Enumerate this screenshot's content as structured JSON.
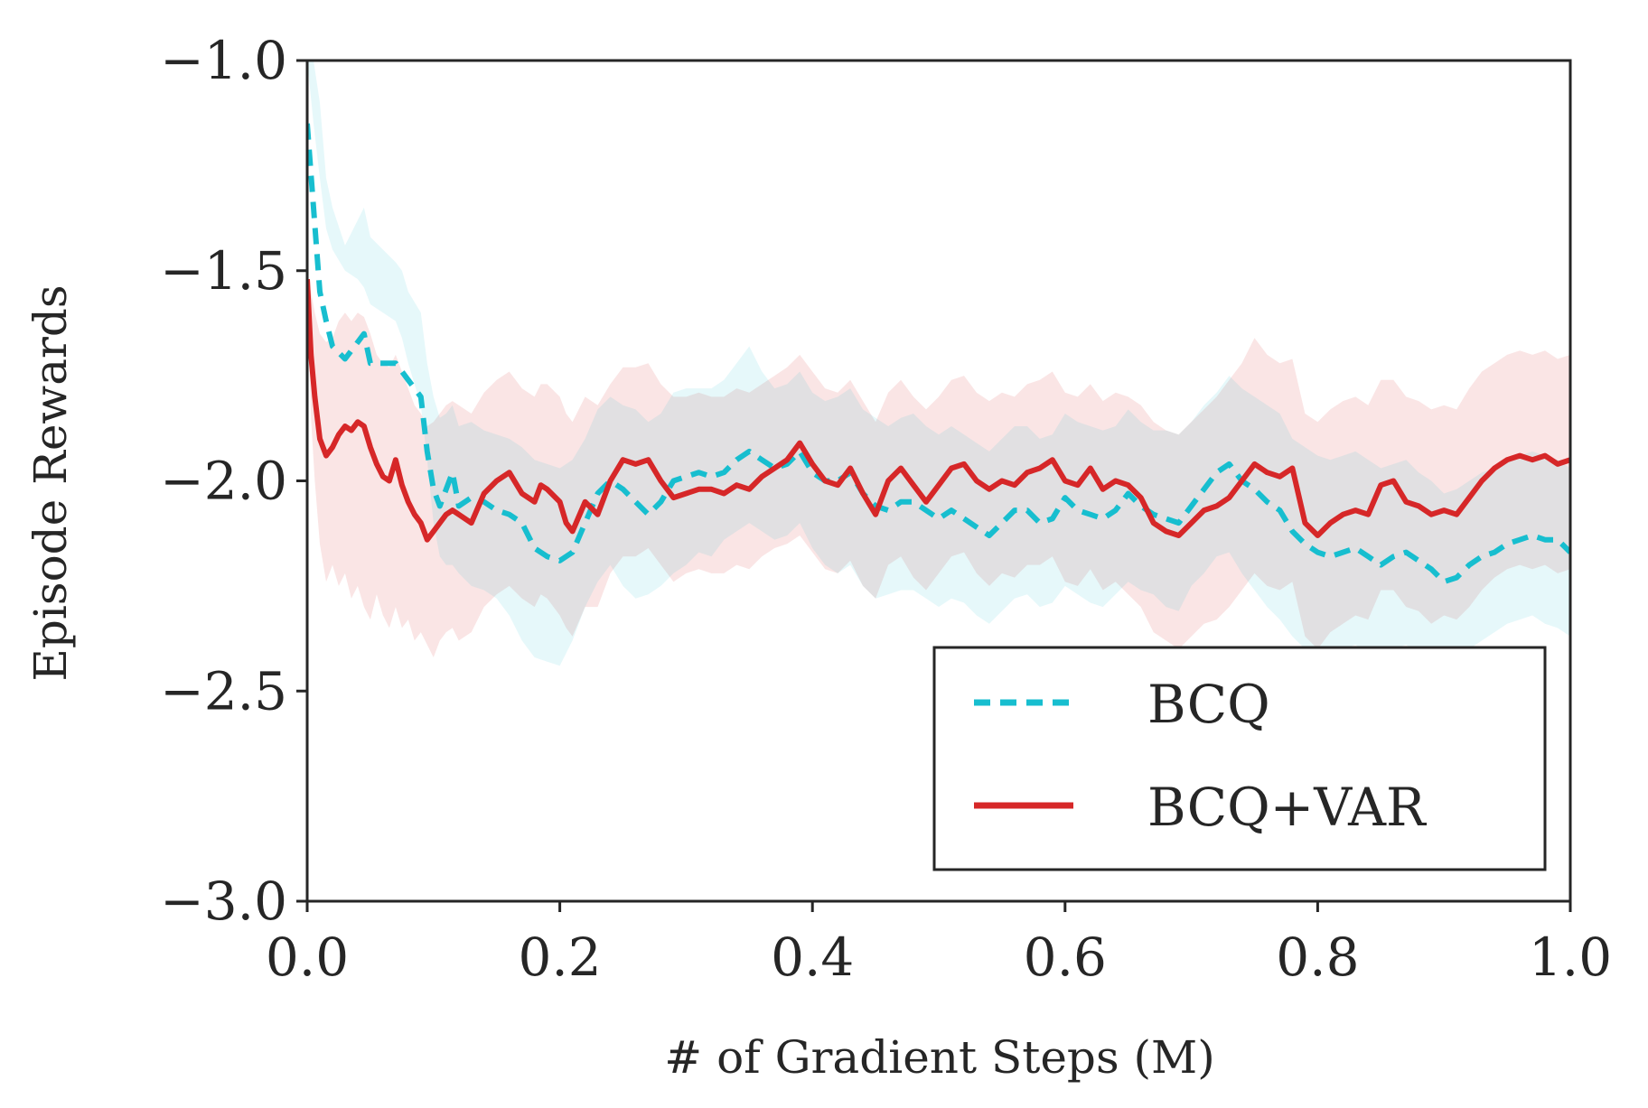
{
  "chart_data": {
    "type": "line",
    "title": "",
    "xlabel": "# of Gradient Steps (M)",
    "ylabel": "Episode Rewards",
    "xlim": [
      0.0,
      1.0
    ],
    "ylim": [
      -3.0,
      -1.0
    ],
    "xticks": [
      0.0,
      0.2,
      0.4,
      0.6,
      0.8,
      1.0
    ],
    "xtick_labels": [
      "0.0",
      "0.2",
      "0.4",
      "0.6",
      "0.8",
      "1.0"
    ],
    "yticks": [
      -3.0,
      -2.5,
      -2.0,
      -1.5,
      -1.0
    ],
    "ytick_labels": [
      "−3.0",
      "−2.5",
      "−2.0",
      "−1.5",
      "−1.0"
    ],
    "grid": false,
    "legend_position": "lower-right",
    "series": [
      {
        "name": "BCQ",
        "style": "dashed",
        "color": "#17becf",
        "band_color": "#17becf",
        "x": [
          0.0,
          0.005,
          0.01,
          0.015,
          0.02,
          0.03,
          0.04,
          0.045,
          0.05,
          0.06,
          0.07,
          0.075,
          0.08,
          0.09,
          0.095,
          0.1,
          0.105,
          0.11,
          0.115,
          0.12,
          0.13,
          0.14,
          0.15,
          0.16,
          0.17,
          0.18,
          0.19,
          0.2,
          0.21,
          0.22,
          0.23,
          0.24,
          0.25,
          0.26,
          0.27,
          0.28,
          0.29,
          0.3,
          0.31,
          0.32,
          0.33,
          0.34,
          0.35,
          0.36,
          0.37,
          0.38,
          0.39,
          0.4,
          0.41,
          0.42,
          0.43,
          0.44,
          0.45,
          0.46,
          0.47,
          0.48,
          0.49,
          0.5,
          0.51,
          0.52,
          0.53,
          0.54,
          0.55,
          0.56,
          0.57,
          0.58,
          0.59,
          0.6,
          0.61,
          0.62,
          0.63,
          0.64,
          0.65,
          0.66,
          0.67,
          0.68,
          0.69,
          0.7,
          0.71,
          0.72,
          0.73,
          0.74,
          0.75,
          0.76,
          0.77,
          0.78,
          0.79,
          0.8,
          0.81,
          0.82,
          0.83,
          0.84,
          0.85,
          0.86,
          0.87,
          0.88,
          0.89,
          0.9,
          0.91,
          0.92,
          0.93,
          0.94,
          0.95,
          0.96,
          0.97,
          0.98,
          0.99,
          1.0
        ],
        "y": [
          -1.15,
          -1.35,
          -1.55,
          -1.62,
          -1.68,
          -1.71,
          -1.67,
          -1.65,
          -1.72,
          -1.72,
          -1.72,
          -1.74,
          -1.76,
          -1.8,
          -1.93,
          -2.02,
          -2.06,
          -2.02,
          -1.98,
          -2.06,
          -2.04,
          -2.05,
          -2.07,
          -2.08,
          -2.1,
          -2.16,
          -2.18,
          -2.19,
          -2.17,
          -2.1,
          -2.03,
          -2.0,
          -2.02,
          -2.05,
          -2.08,
          -2.05,
          -2.0,
          -1.99,
          -1.98,
          -1.99,
          -1.98,
          -1.95,
          -1.93,
          -1.95,
          -1.97,
          -1.96,
          -1.93,
          -1.98,
          -2.0,
          -2.0,
          -1.98,
          -2.03,
          -2.06,
          -2.07,
          -2.05,
          -2.05,
          -2.07,
          -2.09,
          -2.07,
          -2.09,
          -2.11,
          -2.13,
          -2.1,
          -2.07,
          -2.07,
          -2.1,
          -2.09,
          -2.04,
          -2.07,
          -2.08,
          -2.09,
          -2.07,
          -2.03,
          -2.06,
          -2.08,
          -2.09,
          -2.1,
          -2.06,
          -2.02,
          -1.98,
          -1.96,
          -2.0,
          -2.02,
          -2.05,
          -2.07,
          -2.12,
          -2.15,
          -2.17,
          -2.18,
          -2.17,
          -2.16,
          -2.18,
          -2.2,
          -2.18,
          -2.17,
          -2.19,
          -2.21,
          -2.24,
          -2.23,
          -2.2,
          -2.18,
          -2.17,
          -2.15,
          -2.14,
          -2.13,
          -2.14,
          -2.14,
          -2.17
        ],
        "lower": [
          -1.0,
          -1.15,
          -1.28,
          -1.4,
          -1.45,
          -1.5,
          -1.52,
          -1.54,
          -1.58,
          -1.6,
          -1.62,
          -1.66,
          -1.72,
          -1.82,
          -1.95,
          -2.1,
          -2.18,
          -2.2,
          -2.2,
          -2.22,
          -2.25,
          -2.26,
          -2.28,
          -2.32,
          -2.38,
          -2.42,
          -2.43,
          -2.44,
          -2.38,
          -2.3,
          -2.24,
          -2.2,
          -2.25,
          -2.28,
          -2.27,
          -2.25,
          -2.22,
          -2.2,
          -2.17,
          -2.18,
          -2.14,
          -2.12,
          -2.1,
          -2.12,
          -2.14,
          -2.13,
          -2.1,
          -2.16,
          -2.2,
          -2.22,
          -2.2,
          -2.25,
          -2.28,
          -2.27,
          -2.26,
          -2.26,
          -2.28,
          -2.3,
          -2.28,
          -2.29,
          -2.32,
          -2.34,
          -2.31,
          -2.28,
          -2.27,
          -2.3,
          -2.29,
          -2.25,
          -2.27,
          -2.29,
          -2.3,
          -2.27,
          -2.24,
          -2.26,
          -2.27,
          -2.3,
          -2.31,
          -2.25,
          -2.22,
          -2.18,
          -2.17,
          -2.22,
          -2.26,
          -2.3,
          -2.33,
          -2.37,
          -2.4,
          -2.41,
          -2.41,
          -2.4,
          -2.39,
          -2.41,
          -2.42,
          -2.4,
          -2.39,
          -2.41,
          -2.44,
          -2.46,
          -2.44,
          -2.4,
          -2.38,
          -2.36,
          -2.34,
          -2.33,
          -2.32,
          -2.34,
          -2.35,
          -2.37
        ],
        "upper": [
          -1.0,
          -1.0,
          -1.1,
          -1.28,
          -1.35,
          -1.44,
          -1.38,
          -1.35,
          -1.42,
          -1.45,
          -1.48,
          -1.5,
          -1.55,
          -1.6,
          -1.72,
          -1.8,
          -1.85,
          -1.84,
          -1.82,
          -1.87,
          -1.86,
          -1.88,
          -1.89,
          -1.9,
          -1.92,
          -1.95,
          -1.96,
          -1.97,
          -1.95,
          -1.9,
          -1.83,
          -1.8,
          -1.82,
          -1.83,
          -1.86,
          -1.84,
          -1.79,
          -1.78,
          -1.78,
          -1.78,
          -1.76,
          -1.72,
          -1.68,
          -1.74,
          -1.78,
          -1.77,
          -1.74,
          -1.79,
          -1.81,
          -1.8,
          -1.78,
          -1.83,
          -1.85,
          -1.87,
          -1.85,
          -1.84,
          -1.87,
          -1.89,
          -1.87,
          -1.89,
          -1.91,
          -1.93,
          -1.9,
          -1.87,
          -1.87,
          -1.9,
          -1.89,
          -1.84,
          -1.86,
          -1.87,
          -1.88,
          -1.87,
          -1.83,
          -1.86,
          -1.88,
          -1.88,
          -1.89,
          -1.86,
          -1.82,
          -1.79,
          -1.75,
          -1.78,
          -1.8,
          -1.82,
          -1.84,
          -1.9,
          -1.92,
          -1.94,
          -1.95,
          -1.94,
          -1.93,
          -1.95,
          -1.97,
          -1.96,
          -1.95,
          -1.98,
          -2.0,
          -2.03,
          -2.02,
          -2.0,
          -1.98,
          -1.97,
          -1.95,
          -1.94,
          -1.93,
          -1.94,
          -1.95,
          -1.97
        ]
      },
      {
        "name": "BCQ+VAR",
        "style": "solid",
        "color": "#d62728",
        "band_color": "#d62728",
        "x": [
          0.0,
          0.003,
          0.006,
          0.01,
          0.015,
          0.02,
          0.025,
          0.03,
          0.035,
          0.04,
          0.045,
          0.05,
          0.055,
          0.06,
          0.065,
          0.07,
          0.075,
          0.08,
          0.085,
          0.09,
          0.095,
          0.1,
          0.105,
          0.11,
          0.115,
          0.12,
          0.13,
          0.14,
          0.15,
          0.16,
          0.17,
          0.18,
          0.185,
          0.19,
          0.2,
          0.205,
          0.21,
          0.22,
          0.23,
          0.24,
          0.25,
          0.26,
          0.27,
          0.28,
          0.29,
          0.3,
          0.31,
          0.32,
          0.33,
          0.34,
          0.35,
          0.36,
          0.37,
          0.38,
          0.39,
          0.4,
          0.41,
          0.42,
          0.43,
          0.44,
          0.45,
          0.46,
          0.47,
          0.48,
          0.49,
          0.5,
          0.51,
          0.52,
          0.53,
          0.54,
          0.55,
          0.56,
          0.57,
          0.58,
          0.59,
          0.6,
          0.61,
          0.62,
          0.63,
          0.64,
          0.65,
          0.66,
          0.67,
          0.68,
          0.69,
          0.7,
          0.71,
          0.72,
          0.73,
          0.74,
          0.75,
          0.76,
          0.77,
          0.78,
          0.79,
          0.8,
          0.81,
          0.82,
          0.83,
          0.84,
          0.85,
          0.86,
          0.87,
          0.88,
          0.89,
          0.9,
          0.91,
          0.92,
          0.93,
          0.94,
          0.95,
          0.96,
          0.97,
          0.98,
          0.99,
          1.0
        ],
        "y": [
          -1.52,
          -1.7,
          -1.8,
          -1.9,
          -1.94,
          -1.92,
          -1.89,
          -1.87,
          -1.88,
          -1.86,
          -1.87,
          -1.92,
          -1.96,
          -1.99,
          -2.0,
          -1.95,
          -2.01,
          -2.05,
          -2.08,
          -2.1,
          -2.14,
          -2.12,
          -2.1,
          -2.08,
          -2.07,
          -2.08,
          -2.1,
          -2.03,
          -2.0,
          -1.98,
          -2.03,
          -2.05,
          -2.01,
          -2.02,
          -2.05,
          -2.1,
          -2.12,
          -2.05,
          -2.08,
          -2.0,
          -1.95,
          -1.96,
          -1.95,
          -2.0,
          -2.04,
          -2.03,
          -2.02,
          -2.02,
          -2.03,
          -2.01,
          -2.02,
          -1.99,
          -1.97,
          -1.95,
          -1.91,
          -1.96,
          -2.0,
          -2.01,
          -1.97,
          -2.03,
          -2.08,
          -2.0,
          -1.97,
          -2.01,
          -2.05,
          -2.01,
          -1.97,
          -1.96,
          -2.0,
          -2.02,
          -2.0,
          -2.01,
          -1.98,
          -1.97,
          -1.95,
          -2.0,
          -2.01,
          -1.97,
          -2.02,
          -2.0,
          -2.01,
          -2.04,
          -2.1,
          -2.12,
          -2.13,
          -2.1,
          -2.07,
          -2.06,
          -2.04,
          -2.0,
          -1.96,
          -1.98,
          -1.99,
          -1.97,
          -2.1,
          -2.13,
          -2.1,
          -2.08,
          -2.07,
          -2.08,
          -2.01,
          -2.0,
          -2.05,
          -2.06,
          -2.08,
          -2.07,
          -2.08,
          -2.04,
          -2.0,
          -1.97,
          -1.95,
          -1.94,
          -1.95,
          -1.94,
          -1.96,
          -1.95
        ],
        "lower": [
          -1.52,
          -1.85,
          -2.0,
          -2.15,
          -2.24,
          -2.2,
          -2.25,
          -2.22,
          -2.28,
          -2.25,
          -2.3,
          -2.33,
          -2.27,
          -2.32,
          -2.35,
          -2.3,
          -2.35,
          -2.33,
          -2.38,
          -2.36,
          -2.39,
          -2.42,
          -2.38,
          -2.36,
          -2.35,
          -2.38,
          -2.36,
          -2.3,
          -2.27,
          -2.25,
          -2.28,
          -2.3,
          -2.27,
          -2.28,
          -2.32,
          -2.35,
          -2.37,
          -2.3,
          -2.3,
          -2.22,
          -2.18,
          -2.18,
          -2.16,
          -2.2,
          -2.24,
          -2.22,
          -2.21,
          -2.22,
          -2.22,
          -2.2,
          -2.21,
          -2.18,
          -2.16,
          -2.15,
          -2.13,
          -2.17,
          -2.21,
          -2.22,
          -2.19,
          -2.25,
          -2.28,
          -2.2,
          -2.18,
          -2.23,
          -2.26,
          -2.22,
          -2.18,
          -2.17,
          -2.22,
          -2.25,
          -2.22,
          -2.23,
          -2.2,
          -2.2,
          -2.18,
          -2.24,
          -2.25,
          -2.21,
          -2.26,
          -2.24,
          -2.27,
          -2.3,
          -2.36,
          -2.38,
          -2.4,
          -2.37,
          -2.34,
          -2.33,
          -2.3,
          -2.26,
          -2.22,
          -2.25,
          -2.26,
          -2.24,
          -2.37,
          -2.4,
          -2.36,
          -2.34,
          -2.32,
          -2.33,
          -2.26,
          -2.26,
          -2.3,
          -2.31,
          -2.34,
          -2.32,
          -2.33,
          -2.3,
          -2.26,
          -2.23,
          -2.21,
          -2.2,
          -2.21,
          -2.2,
          -2.22,
          -2.21
        ],
        "upper": [
          -1.52,
          -1.55,
          -1.6,
          -1.65,
          -1.67,
          -1.66,
          -1.62,
          -1.6,
          -1.62,
          -1.6,
          -1.61,
          -1.65,
          -1.7,
          -1.72,
          -1.73,
          -1.7,
          -1.74,
          -1.78,
          -1.82,
          -1.84,
          -1.87,
          -1.86,
          -1.84,
          -1.82,
          -1.81,
          -1.82,
          -1.84,
          -1.79,
          -1.76,
          -1.74,
          -1.78,
          -1.8,
          -1.77,
          -1.77,
          -1.8,
          -1.84,
          -1.86,
          -1.8,
          -1.82,
          -1.77,
          -1.73,
          -1.73,
          -1.72,
          -1.77,
          -1.8,
          -1.8,
          -1.79,
          -1.8,
          -1.8,
          -1.78,
          -1.79,
          -1.77,
          -1.75,
          -1.73,
          -1.7,
          -1.74,
          -1.78,
          -1.79,
          -1.76,
          -1.81,
          -1.86,
          -1.79,
          -1.76,
          -1.8,
          -1.83,
          -1.8,
          -1.76,
          -1.75,
          -1.79,
          -1.81,
          -1.79,
          -1.8,
          -1.77,
          -1.76,
          -1.74,
          -1.79,
          -1.8,
          -1.77,
          -1.81,
          -1.79,
          -1.8,
          -1.82,
          -1.86,
          -1.88,
          -1.89,
          -1.86,
          -1.83,
          -1.8,
          -1.76,
          -1.72,
          -1.66,
          -1.7,
          -1.72,
          -1.71,
          -1.84,
          -1.86,
          -1.83,
          -1.81,
          -1.8,
          -1.82,
          -1.76,
          -1.76,
          -1.8,
          -1.81,
          -1.83,
          -1.82,
          -1.83,
          -1.78,
          -1.74,
          -1.72,
          -1.7,
          -1.69,
          -1.7,
          -1.69,
          -1.71,
          -1.7
        ]
      }
    ]
  }
}
